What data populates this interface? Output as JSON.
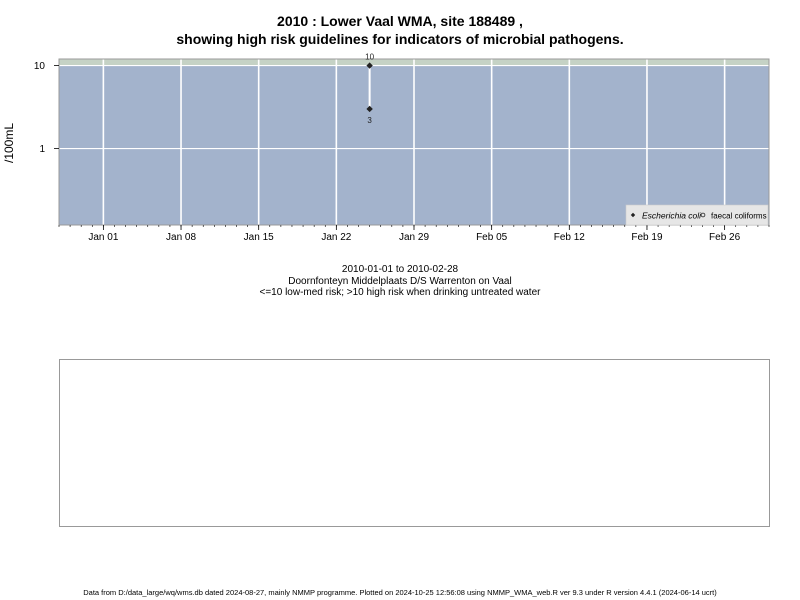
{
  "title": {
    "line1": "2010 : Lower Vaal WMA, site 188489 ,",
    "line2": "showing high risk guidelines for indicators of microbial pathogens."
  },
  "subtitle": {
    "date_range": "2010-01-01 to 2010-02-28",
    "site_name": "Doornfonteyn Middelplaats D/S Warrenton on Vaal",
    "risk_note": "<=10 low-med risk; >10 high risk when drinking untreated water"
  },
  "footer": "Data from D:/data_large/wq/wms.db dated 2024-08-27, mainly NMMP programme. Plotted on 2024-10-25 12:56:08 using NMMP_WMA_web.R ver 9.3 under R version 4.4.1 (2024-06-14 ucrt)",
  "chart_data": {
    "type": "scatter",
    "x_type": "date",
    "xlim": [
      "2009-12-28",
      "2010-03-02"
    ],
    "x_ticks": [
      {
        "date": "2010-01-01",
        "label": "Jan 01"
      },
      {
        "date": "2010-01-08",
        "label": "Jan 08"
      },
      {
        "date": "2010-01-15",
        "label": "Jan 15"
      },
      {
        "date": "2010-01-22",
        "label": "Jan 22"
      },
      {
        "date": "2010-01-29",
        "label": "Jan 29"
      },
      {
        "date": "2010-02-05",
        "label": "Feb 05"
      },
      {
        "date": "2010-02-12",
        "label": "Feb 12"
      },
      {
        "date": "2010-02-19",
        "label": "Feb 19"
      },
      {
        "date": "2010-02-26",
        "label": "Feb 26"
      }
    ],
    "y_scale": "log",
    "ylim": [
      0.12,
      12
    ],
    "y_ticks": [
      {
        "value": 1,
        "label": "1"
      },
      {
        "value": 10,
        "label": "10"
      }
    ],
    "ylabel": "/100mL",
    "guideline": 10,
    "colors": {
      "low_risk_band": "#a3b3cc",
      "high_risk_band": "#c5d2c5",
      "grid": "#ffffff",
      "point": "#222222",
      "connector": "#ffffff"
    },
    "series": [
      {
        "name": "Escherichia coli",
        "marker": "filled-diamond",
        "points": [
          {
            "x": "2010-01-25",
            "y": 10,
            "label": "10"
          },
          {
            "x": "2010-01-25",
            "y": 3,
            "label": "3"
          }
        ]
      },
      {
        "name": "faecal coliforms",
        "marker": "open-circle",
        "points": []
      }
    ],
    "legend_position": "bottom-right"
  }
}
